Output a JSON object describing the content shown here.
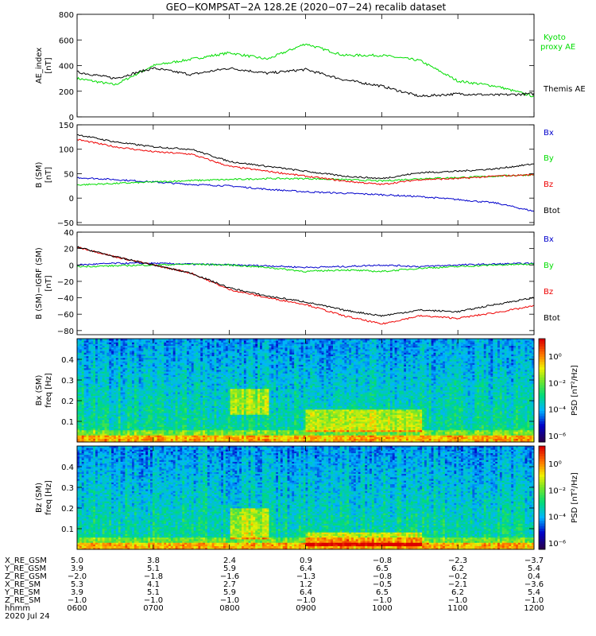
{
  "title": "GEO−KOMPSAT−2A 128.2E (2020−07−24) recalib dataset",
  "time_ticks_hhmm": [
    "0600",
    "0700",
    "0800",
    "0900",
    "1000",
    "1100",
    "1200"
  ],
  "ephemeris": {
    "rows": [
      {
        "label": "X_RE_GSM",
        "values": [
          "5.0",
          "3.8",
          "2.4",
          "0.9",
          "−0.8",
          "−2.3",
          "−3.7"
        ]
      },
      {
        "label": "Y_RE_GSM",
        "values": [
          "3.9",
          "5.1",
          "5.9",
          "6.4",
          "6.5",
          "6.2",
          "5.4"
        ]
      },
      {
        "label": "Z_RE_GSM",
        "values": [
          "−2.0",
          "−1.8",
          "−1.6",
          "−1.3",
          "−0.8",
          "−0.2",
          "0.4"
        ]
      },
      {
        "label": "X_RE_SM",
        "values": [
          "5.3",
          "4.1",
          "2.7",
          "1.2",
          "−0.5",
          "−2.1",
          "−3.6"
        ]
      },
      {
        "label": "Y_RE_SM",
        "values": [
          "3.9",
          "5.1",
          "5.9",
          "6.4",
          "6.5",
          "6.2",
          "5.4"
        ]
      },
      {
        "label": "Z_RE_SM",
        "values": [
          "−1.0",
          "−1.0",
          "−1.0",
          "−1.0",
          "−1.0",
          "−1.0",
          "−1.0"
        ]
      },
      {
        "label": "hhmm",
        "values": [
          "0600",
          "0700",
          "0800",
          "0900",
          "1000",
          "1100",
          "1200"
        ]
      }
    ],
    "date": "2020 Jul 24"
  },
  "colors": {
    "black": "#000000",
    "green": "#00dd00",
    "red": "#ee0000",
    "blue": "#0000cc"
  },
  "chart_data": [
    {
      "type": "line",
      "ylabel": "AE_index",
      "yunit": "[nT]",
      "ylim": [
        0,
        800
      ],
      "yticks": [
        "0",
        "200",
        "400",
        "600",
        "800"
      ],
      "x": [
        "0600",
        "0630",
        "0700",
        "0730",
        "0800",
        "0830",
        "0900",
        "0930",
        "1000",
        "1030",
        "1100",
        "1130",
        "1200"
      ],
      "series": [
        {
          "name": "Kyoto proxy AE",
          "color": "#00dd00",
          "values": [
            300,
            250,
            400,
            450,
            500,
            450,
            570,
            480,
            480,
            440,
            280,
            240,
            160
          ]
        },
        {
          "name": "Themis AE",
          "color": "#000000",
          "values": [
            350,
            300,
            380,
            330,
            380,
            340,
            370,
            290,
            240,
            160,
            180,
            170,
            180
          ]
        }
      ]
    },
    {
      "type": "line",
      "ylabel": "B (SM)",
      "yunit": "[nT]",
      "ylim": [
        -55,
        150
      ],
      "yticks": [
        "−50",
        "0",
        "50",
        "100",
        "150"
      ],
      "x": [
        "0600",
        "0630",
        "0700",
        "0730",
        "0800",
        "0830",
        "0900",
        "0930",
        "1000",
        "1030",
        "1100",
        "1130",
        "1200"
      ],
      "series": [
        {
          "name": "Bx",
          "color": "#0000cc",
          "values": [
            42,
            38,
            33,
            28,
            25,
            18,
            13,
            10,
            7,
            3,
            -3,
            -10,
            -27
          ]
        },
        {
          "name": "By",
          "color": "#00dd00",
          "values": [
            27,
            30,
            33,
            36,
            38,
            40,
            40,
            38,
            35,
            40,
            42,
            45,
            48
          ]
        },
        {
          "name": "Bz",
          "color": "#ee0000",
          "values": [
            120,
            105,
            95,
            90,
            65,
            55,
            45,
            35,
            28,
            38,
            40,
            45,
            48
          ]
        },
        {
          "name": "Btot",
          "color": "#000000",
          "values": [
            130,
            115,
            105,
            100,
            75,
            65,
            55,
            45,
            40,
            52,
            55,
            60,
            70
          ]
        }
      ]
    },
    {
      "type": "line",
      "ylabel": "B (SM)−IGRF (SM)",
      "yunit": "[nT]",
      "ylim": [
        -85,
        40
      ],
      "yticks": [
        "−80",
        "−60",
        "−40",
        "−20",
        "0",
        "20",
        "40"
      ],
      "x": [
        "0600",
        "0630",
        "0700",
        "0730",
        "0800",
        "0830",
        "0900",
        "0930",
        "1000",
        "1030",
        "1100",
        "1130",
        "1200"
      ],
      "series": [
        {
          "name": "Bx",
          "color": "#0000cc",
          "values": [
            0,
            2,
            2,
            1,
            0,
            -1,
            -3,
            -2,
            0,
            -2,
            0,
            1,
            2
          ]
        },
        {
          "name": "By",
          "color": "#00dd00",
          "values": [
            -2,
            -1,
            0,
            1,
            0,
            -3,
            -8,
            -6,
            -8,
            -4,
            -2,
            0,
            1
          ]
        },
        {
          "name": "Bz",
          "color": "#ee0000",
          "values": [
            22,
            10,
            0,
            -10,
            -30,
            -40,
            -48,
            -62,
            -72,
            -62,
            -65,
            -58,
            -50
          ]
        },
        {
          "name": "Btot",
          "color": "#000000",
          "values": [
            22,
            10,
            0,
            -10,
            -28,
            -38,
            -45,
            -55,
            -62,
            -55,
            -57,
            -48,
            -40
          ]
        }
      ]
    },
    {
      "type": "heatmap",
      "ylabel": "Bx (SM)",
      "yunit": "freq [Hz]",
      "ylim": [
        0,
        0.5
      ],
      "yticks": [
        "0.1",
        "0.2",
        "0.3",
        "0.4"
      ],
      "colorbar": {
        "label": "PSD [nT²/Hz]",
        "ticks": [
          "10⁰",
          "10⁻²",
          "10⁻⁴",
          "10⁻⁶"
        ]
      },
      "x": [
        "0600",
        "0630",
        "0700",
        "0730",
        "0800",
        "0830",
        "0900",
        "0930",
        "1000",
        "1030",
        "1100",
        "1130",
        "1200"
      ],
      "hot_regions": [
        [
          "0800",
          "0830",
          "0.13",
          "0.26"
        ],
        [
          "0900",
          "1030",
          "0.05",
          "0.16"
        ]
      ]
    },
    {
      "type": "heatmap",
      "ylabel": "Bz (SM)",
      "yunit": "freq [Hz]",
      "ylim": [
        0,
        0.5
      ],
      "yticks": [
        "0.1",
        "0.2",
        "0.3",
        "0.4"
      ],
      "colorbar": {
        "label": "PSD [nT²/Hz]",
        "ticks": [
          "10⁰",
          "10⁻²",
          "10⁻⁴",
          "10⁻⁶"
        ]
      },
      "x": [
        "0600",
        "0630",
        "0700",
        "0730",
        "0800",
        "0830",
        "0900",
        "0930",
        "1000",
        "1030",
        "1100",
        "1130",
        "1200"
      ],
      "hot_regions": [
        [
          "0800",
          "0830",
          "0.05",
          "0.20"
        ],
        [
          "0900",
          "1030",
          "0.02",
          "0.08"
        ]
      ]
    }
  ]
}
